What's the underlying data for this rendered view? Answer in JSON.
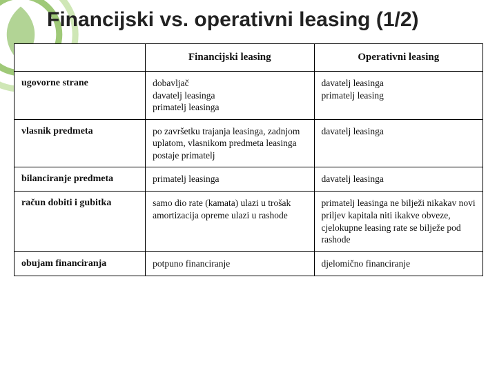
{
  "slide": {
    "title": "Financijski vs. operativni leasing (1/2)"
  },
  "table": {
    "headers": {
      "col1": "Financijski leasing",
      "col2": "Operativni leasing"
    },
    "rows": [
      {
        "label": "ugovorne strane",
        "col1": "dobavljač\ndavatelj leasinga\nprimatelj leasinga",
        "col2": "davatelj leasinga\nprimatelj leasing"
      },
      {
        "label": "vlasnik predmeta",
        "col1": "po završetku trajanja leasinga, zadnjom uplatom, vlasnikom predmeta leasinga postaje primatelj",
        "col2": "davatelj leasinga"
      },
      {
        "label": "bilanciranje predmeta",
        "col1": "primatelj leasinga",
        "col2": "davatelj leasinga"
      },
      {
        "label": "račun dobiti i gubitka",
        "col1": "samo dio rate (kamata) ulazi u trošak\namortizacija opreme ulazi u rashode",
        "col2": "primatelj leasinga ne bilježi nikakav novi priljev kapitala niti ikakve obveze, cjelokupne leasing rate se bilježe pod rashode"
      },
      {
        "label": "obujam financiranja",
        "col1": "potpuno financiranje",
        "col2": "djelomično financiranje"
      }
    ]
  },
  "decor": {
    "ring_outer": "#cfe7b6",
    "ring_inner": "#9fc978",
    "leaf": "#7fb84f"
  }
}
